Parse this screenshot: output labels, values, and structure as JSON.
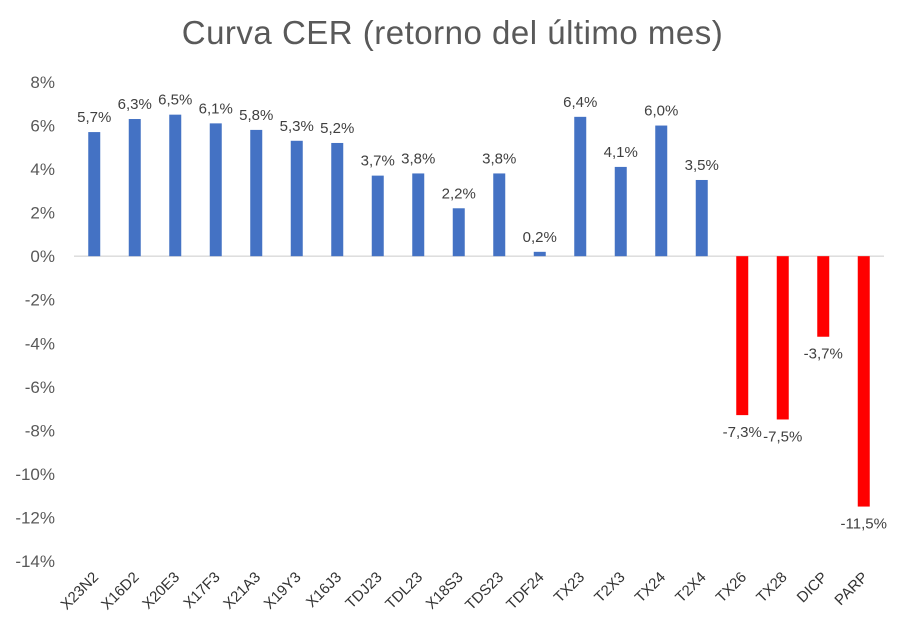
{
  "chart_data": {
    "type": "bar",
    "title": "Curva CER (retorno del último mes)",
    "xlabel": "",
    "ylabel": "",
    "ylim": [
      -14,
      8
    ],
    "yticks": [
      8,
      6,
      4,
      2,
      0,
      -2,
      -4,
      -6,
      -8,
      -10,
      -12,
      -14
    ],
    "ytick_labels": [
      "8%",
      "6%",
      "4%",
      "2%",
      "0%",
      "-2%",
      "-4%",
      "-6%",
      "-8%",
      "-10%",
      "-12%",
      "-14%"
    ],
    "categories": [
      "X23N2",
      "X16D2",
      "X20E3",
      "X17F3",
      "X21A3",
      "X19Y3",
      "X16J3",
      "TDJ23",
      "TDL23",
      "X18S3",
      "TDS23",
      "TDF24",
      "TX23",
      "T2X3",
      "TX24",
      "T2X4",
      "TX26",
      "TX28",
      "DICP",
      "PARP"
    ],
    "values": [
      5.7,
      6.3,
      6.5,
      6.1,
      5.8,
      5.3,
      5.2,
      3.7,
      3.8,
      2.2,
      3.8,
      0.2,
      6.4,
      4.1,
      6.0,
      3.5,
      -7.3,
      -7.5,
      -3.7,
      -11.5
    ],
    "data_labels": [
      "5,7%",
      "6,3%",
      "6,5%",
      "6,1%",
      "5,8%",
      "5,3%",
      "5,2%",
      "3,7%",
      "3,8%",
      "2,2%",
      "3,8%",
      "0,2%",
      "6,4%",
      "4,1%",
      "6,0%",
      "3,5%",
      "-7,3%",
      "-7,5%",
      "-3,7%",
      "-11,5%"
    ],
    "colors": {
      "positive": "#4472C4",
      "negative": "#FF0000",
      "axis": "#D9D9D9"
    },
    "grid": false,
    "legend": "none"
  }
}
